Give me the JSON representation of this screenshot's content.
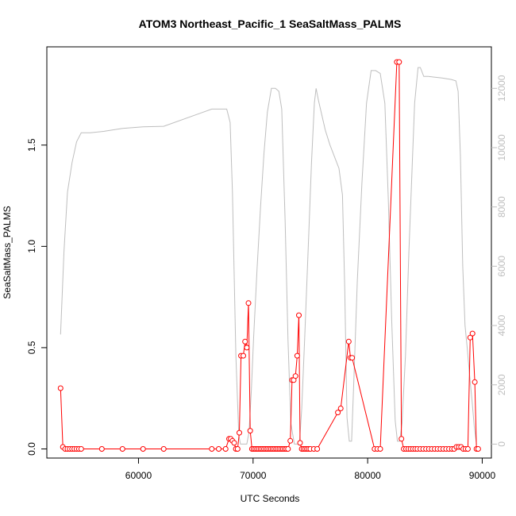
{
  "chart_data": {
    "type": "line",
    "title": "ATOM3 Northeast_Pacific_1 SeaSaltMass_PALMS",
    "xlabel": "UTC Seconds",
    "ylabel": "SeaSaltMass_PALMS",
    "xlim": [
      52000,
      90800
    ],
    "ylim": [
      -0.045,
      1.985
    ],
    "y2lim": [
      -470,
      13400
    ],
    "x_ticks": [
      60000,
      70000,
      80000,
      90000
    ],
    "x_tick_labels": [
      "60000",
      "70000",
      "80000",
      "90000"
    ],
    "y_ticks": [
      0.0,
      0.5,
      1.0,
      1.5
    ],
    "y_tick_labels": [
      "0.0",
      "0.5",
      "1.0",
      "1.5"
    ],
    "y2_ticks": [
      0,
      2000,
      4000,
      6000,
      8000,
      10000,
      12000
    ],
    "y2_tick_labels": [
      "0",
      "2000",
      "4000",
      "6000",
      "8000",
      "10000",
      "12000"
    ],
    "grid": false,
    "colors": {
      "series": "#ff0000",
      "altitude": "#bebebe",
      "axis": "#000000",
      "right_axis": "#bebebe"
    },
    "series": [
      {
        "axis": "left",
        "style": "line+markers",
        "x": [
          53200,
          53400,
          53600,
          53800,
          54000,
          54200,
          54400,
          54600,
          54800,
          55000,
          56800,
          58600,
          60400,
          62200,
          66400,
          67000,
          67600,
          67900,
          68050,
          68200,
          68350,
          68500,
          68650,
          68800,
          68950,
          69150,
          69300,
          69450,
          69600,
          69750,
          69900,
          70050,
          70200,
          70350,
          70500,
          70650,
          70800,
          70950,
          71100,
          71250,
          71400,
          71550,
          71700,
          71850,
          72000,
          72150,
          72300,
          72450,
          72600,
          72750,
          72900,
          73050,
          73250,
          73400,
          73550,
          73700,
          73850,
          74000,
          74100,
          74250,
          74400,
          74550,
          74700,
          74850,
          75000,
          75300,
          75600,
          77400,
          77650,
          78350,
          78500,
          78650,
          80600,
          80850,
          81100,
          82550,
          82750,
          82950,
          83150,
          83350,
          83550,
          83750,
          83950,
          84150,
          84350,
          84600,
          84850,
          85100,
          85350,
          85600,
          85850,
          86100,
          86350,
          86600,
          86850,
          87100,
          87350,
          87550,
          87750,
          87950,
          88150,
          88350,
          88550,
          88750,
          88950,
          89150,
          89350,
          89500,
          89650
        ],
        "y": [
          0.3,
          0.01,
          0.0,
          0.0,
          0.0,
          0.0,
          0.0,
          0.0,
          0.0,
          0.0,
          0.0,
          0.0,
          0.0,
          0.0,
          0.0,
          0.0,
          0.0,
          0.05,
          0.05,
          0.04,
          0.03,
          0.0,
          0.0,
          0.08,
          0.46,
          0.46,
          0.53,
          0.5,
          0.72,
          0.09,
          0.0,
          0.0,
          0.0,
          0.0,
          0.0,
          0.0,
          0.0,
          0.0,
          0.0,
          0.0,
          0.0,
          0.0,
          0.0,
          0.0,
          0.0,
          0.0,
          0.0,
          0.0,
          0.0,
          0.0,
          0.0,
          0.0,
          0.04,
          0.34,
          0.34,
          0.36,
          0.46,
          0.66,
          0.03,
          0.0,
          0.0,
          0.0,
          0.0,
          0.0,
          0.0,
          0.0,
          0.0,
          0.18,
          0.2,
          0.53,
          0.45,
          0.45,
          0.0,
          0.0,
          0.0,
          1.91,
          1.91,
          0.05,
          0.0,
          0.0,
          0.0,
          0.0,
          0.0,
          0.0,
          0.0,
          0.0,
          0.0,
          0.0,
          0.0,
          0.0,
          0.0,
          0.0,
          0.0,
          0.0,
          0.0,
          0.0,
          0.0,
          0.0,
          0.01,
          0.01,
          0.01,
          0.0,
          0.0,
          0.0,
          0.55,
          0.57,
          0.33,
          0.0,
          0.0
        ]
      },
      {
        "axis": "right",
        "style": "line",
        "x": [
          53200,
          53500,
          53800,
          54200,
          54600,
          55000,
          55800,
          57000,
          58600,
          60400,
          62200,
          66400,
          67700,
          68000,
          68200,
          68500,
          68750,
          68900,
          69050,
          69200,
          69450,
          69650,
          69850,
          70050,
          70350,
          70650,
          70950,
          71250,
          71600,
          71950,
          72250,
          72500,
          72800,
          73050,
          73300,
          73600,
          73850,
          74050,
          74250,
          74500,
          74800,
          75100,
          75350,
          75500,
          75700,
          76000,
          76300,
          76700,
          77200,
          77500,
          77800,
          78000,
          78200,
          78400,
          78600,
          78800,
          79100,
          79500,
          79900,
          80300,
          80700,
          81100,
          81500,
          81800,
          82100,
          82400,
          82600,
          82800,
          83000,
          83300,
          83600,
          83900,
          84100,
          84400,
          84600,
          84900,
          85300,
          85800,
          86500,
          87300,
          87700,
          87900,
          88100,
          88300,
          88500,
          88700,
          88900,
          89100,
          89300,
          89500
        ],
        "y": [
          3700,
          6500,
          8500,
          9500,
          10200,
          10500,
          10500,
          10550,
          10650,
          10700,
          10720,
          11300,
          11300,
          10850,
          8500,
          3000,
          300,
          0,
          0,
          0,
          0,
          400,
          1800,
          3600,
          5900,
          8000,
          9800,
          11200,
          12000,
          12000,
          11900,
          11300,
          7500,
          3500,
          700,
          0,
          0,
          0,
          1200,
          3500,
          6500,
          9500,
          11500,
          12000,
          11600,
          11100,
          10600,
          10100,
          9600,
          9300,
          8400,
          5200,
          900,
          100,
          100,
          2200,
          5500,
          8800,
          11500,
          12600,
          12600,
          12500,
          11500,
          8300,
          4200,
          800,
          100,
          100,
          700,
          3000,
          6500,
          9500,
          11500,
          12700,
          12700,
          12400,
          12400,
          12380,
          12350,
          12300,
          12250,
          11900,
          9700,
          6000,
          4000,
          3200,
          2300,
          1500,
          600,
          0
        ]
      }
    ]
  }
}
